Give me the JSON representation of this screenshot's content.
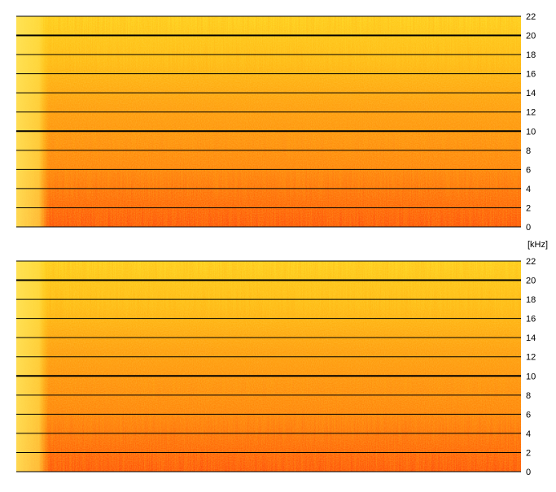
{
  "chart_data": {
    "type": "heatmap",
    "unit_label": "[kHz]",
    "panels": [
      {
        "name": "top-panel",
        "ylim": [
          0,
          22
        ],
        "yticks": [
          {
            "value": 0,
            "label": "0"
          },
          {
            "value": 2,
            "label": "2"
          },
          {
            "value": 4,
            "label": "4"
          },
          {
            "value": 6,
            "label": "6"
          },
          {
            "value": 8,
            "label": "8"
          },
          {
            "value": 10,
            "label": "10"
          },
          {
            "value": 12,
            "label": "12"
          },
          {
            "value": 14,
            "label": "14"
          },
          {
            "value": 16,
            "label": "16"
          },
          {
            "value": 18,
            "label": "18"
          },
          {
            "value": 20,
            "label": "20"
          },
          {
            "value": 22,
            "label": "22"
          }
        ],
        "bold_gridlines": [
          10,
          20
        ]
      },
      {
        "name": "bottom-panel",
        "ylim": [
          0,
          22
        ],
        "yticks": [
          {
            "value": 0,
            "label": "0"
          },
          {
            "value": 2,
            "label": "2"
          },
          {
            "value": 4,
            "label": "4"
          },
          {
            "value": 6,
            "label": "6"
          },
          {
            "value": 8,
            "label": "8"
          },
          {
            "value": 10,
            "label": "10"
          },
          {
            "value": 12,
            "label": "12"
          },
          {
            "value": 14,
            "label": "14"
          },
          {
            "value": 16,
            "label": "16"
          },
          {
            "value": 18,
            "label": "18"
          },
          {
            "value": 20,
            "label": "20"
          },
          {
            "value": 22,
            "label": "22"
          }
        ],
        "bold_gridlines": [
          10,
          20
        ]
      }
    ],
    "colormap": {
      "high_energy": "#ff3000",
      "mid_energy": "#ff8c00",
      "low_energy": "#ffe000"
    },
    "gridline_color": "#000000",
    "grid": true,
    "legend": "none"
  }
}
